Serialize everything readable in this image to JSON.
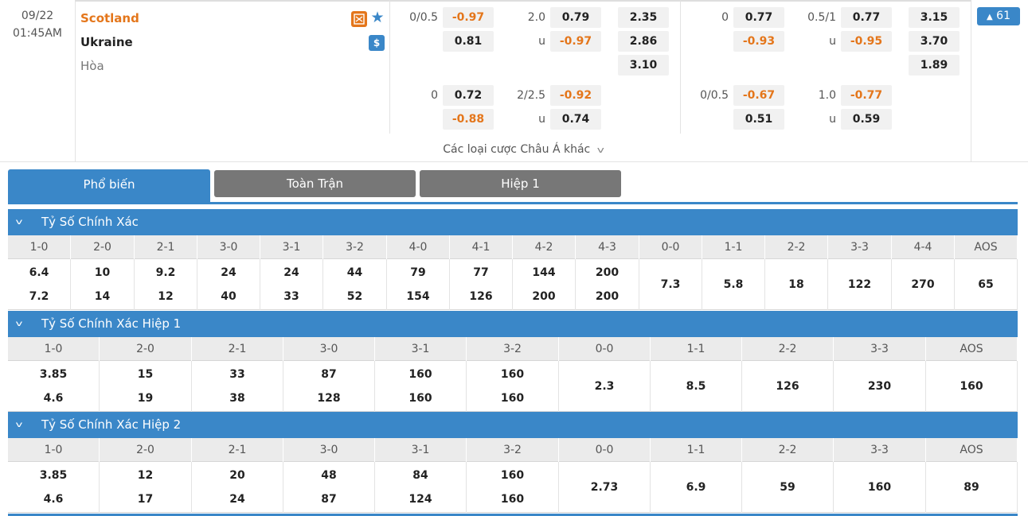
{
  "match": {
    "date": "09/22",
    "time": "01:45AM",
    "home": "Scotland",
    "away": "Ukraine",
    "draw": "Hòa",
    "icons": [
      "stats-icon",
      "star-icon",
      "dollar-icon"
    ],
    "markets_count": "61",
    "more_label": "Các loại cược Châu Á khác"
  },
  "odds": {
    "full": {
      "main_hdp": {
        "line": "0/0.5",
        "home": "-0.97",
        "away": "0.81"
      },
      "main_ou": {
        "line": "2.0",
        "over": "0.79",
        "under_label": "u",
        "under": "-0.97"
      },
      "x12": [
        "2.35",
        "2.86",
        "3.10"
      ],
      "alt_hdp": {
        "line": "0",
        "home": "0.72",
        "away": "-0.88"
      },
      "alt_ou": {
        "line": "2/2.5",
        "over": "-0.92",
        "under_label": "u",
        "under": "0.74"
      }
    },
    "half": {
      "main_hdp": {
        "line": "0",
        "home": "0.77",
        "away": "-0.93"
      },
      "main_ou": {
        "line": "0.5/1",
        "over": "0.77",
        "under_label": "u",
        "under": "-0.95"
      },
      "x12": [
        "3.15",
        "3.70",
        "1.89"
      ],
      "alt_hdp": {
        "line": "0/0.5",
        "home": "-0.67",
        "away": "0.51"
      },
      "alt_ou": {
        "line": "1.0",
        "over": "-0.77",
        "under_label": "u",
        "under": "0.59"
      }
    }
  },
  "tabs": [
    "Phổ biến",
    "Toàn Trận",
    "Hiệp 1"
  ],
  "sections": [
    {
      "title": "Tỷ Số Chính Xác",
      "columns": [
        "1-0",
        "2-0",
        "2-1",
        "3-0",
        "3-1",
        "3-2",
        "4-0",
        "4-1",
        "4-2",
        "4-3",
        "0-0",
        "1-1",
        "2-2",
        "3-3",
        "4-4",
        "AOS"
      ],
      "home": [
        "6.4",
        "10",
        "9.2",
        "24",
        "24",
        "44",
        "79",
        "77",
        "144",
        "200"
      ],
      "away": [
        "7.2",
        "14",
        "12",
        "40",
        "33",
        "52",
        "154",
        "126",
        "200",
        "200"
      ],
      "single": [
        "7.3",
        "5.8",
        "18",
        "122",
        "270",
        "65"
      ]
    },
    {
      "title": "Tỷ Số Chính Xác Hiệp 1",
      "columns": [
        "1-0",
        "2-0",
        "2-1",
        "3-0",
        "3-1",
        "3-2",
        "0-0",
        "1-1",
        "2-2",
        "3-3",
        "AOS"
      ],
      "home": [
        "3.85",
        "15",
        "33",
        "87",
        "160",
        "160"
      ],
      "away": [
        "4.6",
        "19",
        "38",
        "128",
        "160",
        "160"
      ],
      "single": [
        "2.3",
        "8.5",
        "126",
        "230",
        "160"
      ]
    },
    {
      "title": "Tỷ Số Chính Xác Hiệp 2",
      "columns": [
        "1-0",
        "2-0",
        "2-1",
        "3-0",
        "3-1",
        "3-2",
        "0-0",
        "1-1",
        "2-2",
        "3-3",
        "AOS"
      ],
      "home": [
        "3.85",
        "12",
        "20",
        "48",
        "84",
        "160"
      ],
      "away": [
        "4.6",
        "17",
        "24",
        "87",
        "124",
        "160"
      ],
      "single": [
        "2.73",
        "6.9",
        "59",
        "160",
        "89"
      ]
    }
  ],
  "colors": {
    "accent": "#3a87c8",
    "negative": "#e4761b",
    "tab_inactive": "#777777"
  }
}
